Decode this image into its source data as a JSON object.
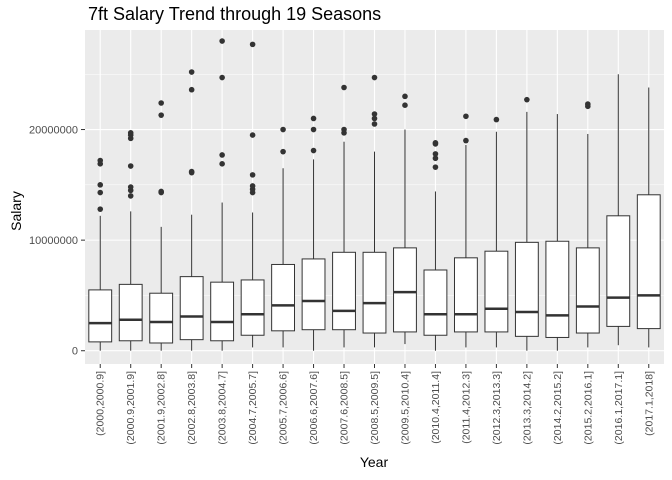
{
  "chart_data": {
    "type": "boxplot",
    "title": "7ft Salary Trend through 19 Seasons",
    "xlabel": "Year",
    "ylabel": "Salary",
    "ylim": [
      -1200000,
      29000000
    ],
    "yticks": [
      0,
      10000000,
      20000000
    ],
    "ytick_labels": [
      "0",
      "10000000",
      "20000000"
    ],
    "grid": true,
    "colors": {
      "panel": "#EBEBEB",
      "grid_major": "#FFFFFF",
      "box_fill": "#FFFFFF",
      "box_line": "#333333",
      "outlier": "#333333"
    },
    "categories": [
      "(2000,2000.9]",
      "(2000.9,2001.9]",
      "(2001.9,2002.8]",
      "(2002.8,2003.8]",
      "(2003.8,2004.7]",
      "(2004.7,2005.7]",
      "(2005.7,2006.6]",
      "(2006.6,2007.6]",
      "(2007.6,2008.5]",
      "(2008.5,2009.5]",
      "(2009.5,2010.4]",
      "(2010.4,2011.4]",
      "(2011.4,2012.3]",
      "(2012.3,2013.3]",
      "(2013.3,2014.2]",
      "(2014.2,2015.2]",
      "(2015.2,2016.1]",
      "(2016.1,2017.1]",
      "(2017.1,2018]"
    ],
    "boxes": [
      {
        "min": 0,
        "q1": 800000,
        "median": 2500000,
        "q3": 5500000,
        "max": 12200000,
        "outliers": [
          12800000,
          14300000,
          15000000,
          16900000,
          17200000
        ]
      },
      {
        "min": 0,
        "q1": 900000,
        "median": 2800000,
        "q3": 6000000,
        "max": 12600000,
        "outliers": [
          14000000,
          14500000,
          14800000,
          16700000,
          19200000,
          19500000,
          19700000
        ]
      },
      {
        "min": 0,
        "q1": 700000,
        "median": 2600000,
        "q3": 5200000,
        "max": 11200000,
        "outliers": [
          14300000,
          14400000,
          21300000,
          22400000
        ]
      },
      {
        "min": 0,
        "q1": 1000000,
        "median": 3100000,
        "q3": 6700000,
        "max": 12300000,
        "outliers": [
          16100000,
          16200000,
          23600000,
          25200000
        ]
      },
      {
        "min": 0,
        "q1": 900000,
        "median": 2600000,
        "q3": 6200000,
        "max": 13400000,
        "outliers": [
          16900000,
          17700000,
          24700000,
          28000000
        ]
      },
      {
        "min": 300000,
        "q1": 1400000,
        "median": 3300000,
        "q3": 6400000,
        "max": 12500000,
        "outliers": [
          14300000,
          14600000,
          14900000,
          15900000,
          19500000,
          27700000
        ]
      },
      {
        "min": 300000,
        "q1": 1800000,
        "median": 4100000,
        "q3": 7800000,
        "max": 16500000,
        "outliers": [
          18000000,
          20000000
        ]
      },
      {
        "min": 0,
        "q1": 1900000,
        "median": 4500000,
        "q3": 8300000,
        "max": 17300000,
        "outliers": [
          18100000,
          20000000,
          21000000
        ]
      },
      {
        "min": 300000,
        "q1": 1900000,
        "median": 3600000,
        "q3": 8900000,
        "max": 18900000,
        "outliers": [
          19700000,
          20000000,
          23800000
        ]
      },
      {
        "min": 300000,
        "q1": 1600000,
        "median": 4300000,
        "q3": 8900000,
        "max": 18000000,
        "outliers": [
          20500000,
          21000000,
          21400000,
          24700000
        ]
      },
      {
        "min": 600000,
        "q1": 1700000,
        "median": 5300000,
        "q3": 9300000,
        "max": 20000000,
        "outliers": [
          22200000,
          23000000
        ]
      },
      {
        "min": 0,
        "q1": 1400000,
        "median": 3300000,
        "q3": 7300000,
        "max": 14400000,
        "outliers": [
          16600000,
          17400000,
          17800000,
          18700000,
          18800000
        ]
      },
      {
        "min": 300000,
        "q1": 1700000,
        "median": 3300000,
        "q3": 8400000,
        "max": 18600000,
        "outliers": [
          19000000,
          21200000
        ]
      },
      {
        "min": 300000,
        "q1": 1700000,
        "median": 3800000,
        "q3": 9000000,
        "max": 19800000,
        "outliers": [
          20900000
        ]
      },
      {
        "min": 0,
        "q1": 1300000,
        "median": 3500000,
        "q3": 9800000,
        "max": 21600000,
        "outliers": [
          22700000
        ]
      },
      {
        "min": 0,
        "q1": 1200000,
        "median": 3200000,
        "q3": 9900000,
        "max": 21400000,
        "outliers": []
      },
      {
        "min": 300000,
        "q1": 1600000,
        "median": 4000000,
        "q3": 9300000,
        "max": 19600000,
        "outliers": [
          22100000,
          22300000
        ]
      },
      {
        "min": 500000,
        "q1": 2200000,
        "median": 4800000,
        "q3": 12200000,
        "max": 25000000,
        "outliers": []
      },
      {
        "min": 300000,
        "q1": 2000000,
        "median": 5000000,
        "q3": 14100000,
        "max": 23800000,
        "outliers": []
      }
    ]
  }
}
